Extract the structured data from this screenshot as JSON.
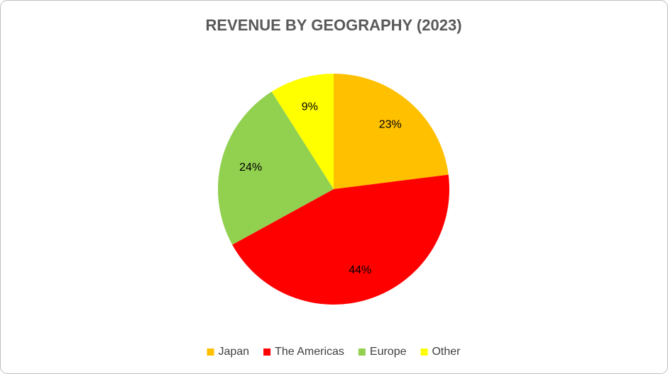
{
  "chart_data": {
    "type": "pie",
    "title": "REVENUE BY GEOGRAPHY (2023)",
    "categories": [
      "Japan",
      "The Americas",
      "Europe",
      "Other"
    ],
    "values": [
      23,
      44,
      24,
      9
    ],
    "value_labels": [
      "23%",
      "44%",
      "24%",
      "9%"
    ],
    "colors": [
      "#ffc000",
      "#ff0000",
      "#92d050",
      "#ffff00"
    ],
    "legend": "bottom"
  }
}
